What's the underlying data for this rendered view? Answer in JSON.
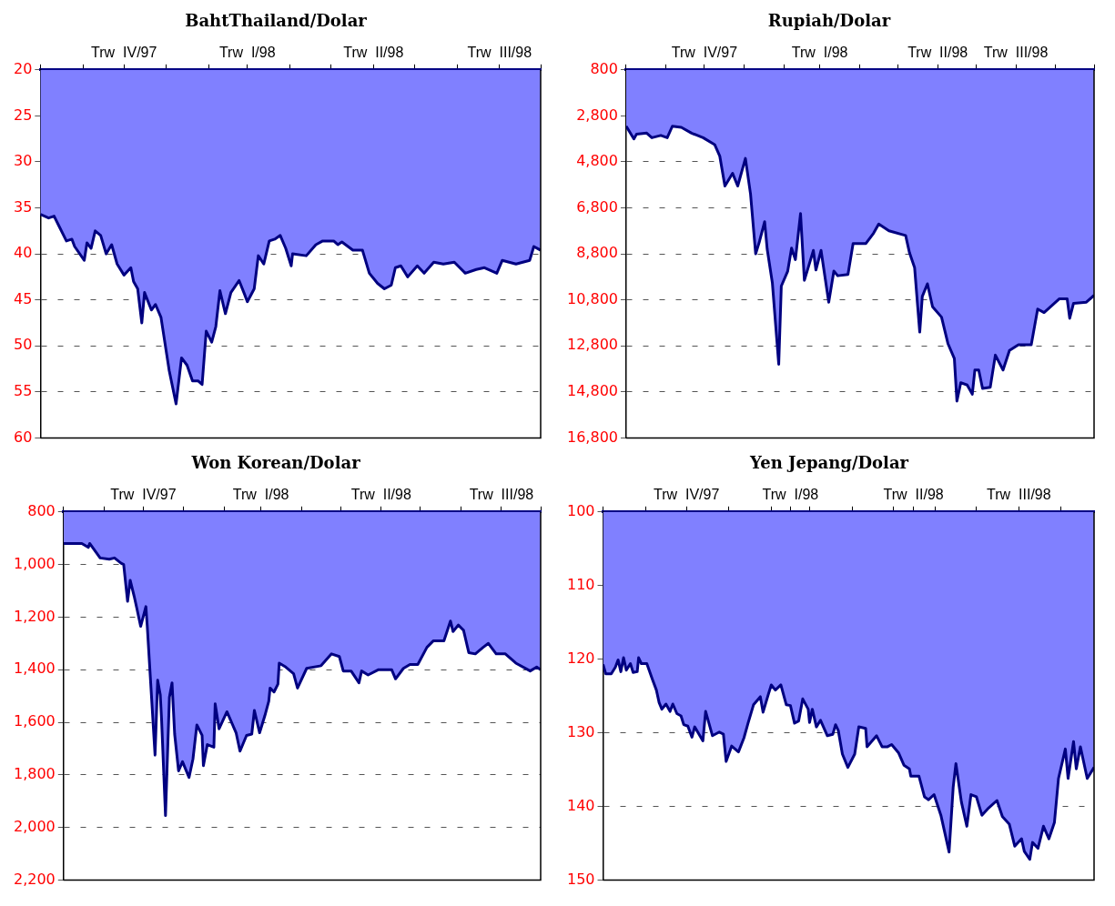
{
  "chart_data": [
    {
      "type": "area",
      "title": "BahtThailand/Dolar",
      "color": "#8080ff",
      "grid": "y",
      "xlim": [
        "1997-10-01",
        "1998-10-01"
      ],
      "ylim": [
        60,
        20
      ],
      "yticks": [
        20,
        25,
        30,
        35,
        40,
        45,
        50,
        55,
        60
      ],
      "xticks": [
        {
          "value": "1997-10-01",
          "label": null
        },
        {
          "value": "1997-11-01",
          "label": null
        },
        {
          "value": "1997-12-01",
          "label": "Trw  IV/97"
        },
        {
          "value": "1998-01-01",
          "label": null
        },
        {
          "value": "1998-02-01",
          "label": null
        },
        {
          "value": "1998-03-01",
          "label": "Trw  I/98"
        },
        {
          "value": "1998-04-01",
          "label": null
        },
        {
          "value": "1998-05-01",
          "label": null
        },
        {
          "value": "1998-06-01",
          "label": "Trw  II/98"
        },
        {
          "value": "1998-07-01",
          "label": null
        },
        {
          "value": "1998-08-01",
          "label": null
        },
        {
          "value": "1998-09-01",
          "label": "Trw  III/98"
        },
        {
          "value": "1998-10-01",
          "label": null
        }
      ],
      "x": [
        "1997-10-01",
        "1997-10-07",
        "1997-10-11",
        "1997-10-15",
        "1997-10-20",
        "1997-10-24",
        "1997-10-26",
        "1997-11-02",
        "1997-11-04",
        "1997-11-07",
        "1997-11-10",
        "1997-11-14",
        "1997-11-18",
        "1997-11-22",
        "1997-11-26",
        "1997-12-01",
        "1997-12-06",
        "1997-12-08",
        "1997-12-11",
        "1997-12-14",
        "1997-12-16",
        "1997-12-21",
        "1997-12-24",
        "1997-12-28",
        "1998-01-03",
        "1998-01-08",
        "1998-01-12",
        "1998-01-16",
        "1998-01-20",
        "1998-01-24",
        "1998-01-27",
        "1998-01-30",
        "1998-02-03",
        "1998-02-06",
        "1998-02-09",
        "1998-02-13",
        "1998-02-17",
        "1998-02-23",
        "1998-02-27",
        "1998-03-01",
        "1998-03-06",
        "1998-03-09",
        "1998-03-13",
        "1998-03-17",
        "1998-03-21",
        "1998-03-25",
        "1998-03-29",
        "1998-04-02",
        "1998-04-03",
        "1998-04-13",
        "1998-04-20",
        "1998-04-25",
        "1998-05-03",
        "1998-05-06",
        "1998-05-09",
        "1998-05-17",
        "1998-05-24",
        "1998-05-29",
        "1998-06-04",
        "1998-06-09",
        "1998-06-14",
        "1998-06-17",
        "1998-06-21",
        "1998-06-26",
        "1998-07-03",
        "1998-07-08",
        "1998-07-15",
        "1998-07-22",
        "1998-07-30",
        "1998-08-07",
        "1998-08-15",
        "1998-08-21",
        "1998-08-30",
        "1998-09-03",
        "1998-09-13",
        "1998-09-23",
        "1998-09-26",
        "1998-10-01"
      ],
      "values": [
        35.7,
        36.1,
        35.9,
        37.1,
        38.6,
        38.4,
        39.2,
        40.7,
        38.8,
        39.4,
        37.5,
        38,
        40,
        39,
        41.1,
        42.3,
        41.5,
        43,
        43.8,
        47.5,
        44.2,
        46.1,
        45.5,
        46.9,
        52.7,
        56.3,
        51.3,
        52.1,
        53.8,
        53.8,
        54.2,
        48.4,
        49.6,
        47.9,
        44,
        46.5,
        44.2,
        42.9,
        44.4,
        45.2,
        43.8,
        40.2,
        41.1,
        38.6,
        38.4,
        38,
        39.4,
        41.3,
        40,
        40.2,
        39,
        38.6,
        38.6,
        39,
        38.7,
        39.6,
        39.6,
        42.1,
        43.2,
        43.8,
        43.4,
        41.5,
        41.3,
        42.5,
        41.3,
        42.1,
        40.9,
        41.1,
        40.9,
        42.1,
        41.7,
        41.5,
        42.1,
        40.7,
        41.1,
        40.7,
        39.2,
        39.6
      ]
    },
    {
      "type": "area",
      "title": "Rupiah/Dolar",
      "color": "#8080ff",
      "grid": "y",
      "xlim": [
        "1997-10-01",
        "1998-10-01"
      ],
      "ylim": [
        16800,
        800
      ],
      "yticks": [
        800,
        {
          "value": 2800,
          "label": "2,800"
        },
        {
          "value": 4800,
          "label": "4,800"
        },
        {
          "value": 6800,
          "label": "6,800"
        },
        {
          "value": 8800,
          "label": "8,800"
        },
        {
          "value": 10800,
          "label": "10,800"
        },
        {
          "value": 12800,
          "label": "12,800"
        },
        {
          "value": 14800,
          "label": "14,800"
        },
        {
          "value": 16800,
          "label": "16,800"
        }
      ],
      "xticks": [
        {
          "value": "1997-10-01",
          "label": null
        },
        {
          "value": "1997-11-01",
          "label": null
        },
        {
          "value": "1997-12-01",
          "label": "Trw  IV/97"
        },
        {
          "value": "1998-01-01",
          "label": null
        },
        {
          "value": "1998-02-01",
          "label": null
        },
        {
          "value": "1998-03-01",
          "label": "Trw  I/98"
        },
        {
          "value": "1998-04-01",
          "label": null
        },
        {
          "value": "1998-05-01",
          "label": null
        },
        {
          "value": "1998-06-01",
          "label": "Trw  II/98"
        },
        {
          "value": "1998-07-01",
          "label": null
        },
        {
          "value": "1998-08-01",
          "label": "Trw  III/98"
        },
        {
          "value": "1998-09-01",
          "label": null
        },
        {
          "value": "1998-10-01",
          "label": null
        }
      ],
      "x": [
        "1997-10-01",
        "1997-10-07",
        "1997-10-09",
        "1997-10-17",
        "1997-10-21",
        "1997-10-28",
        "1997-11-02",
        "1997-11-06",
        "1997-11-13",
        "1997-11-21",
        "1997-11-30",
        "1997-12-09",
        "1997-12-13",
        "1997-12-17",
        "1997-12-23",
        "1997-12-27",
        "1998-01-02",
        "1998-01-06",
        "1998-01-10",
        "1998-01-13",
        "1998-01-17",
        "1998-01-19",
        "1998-01-23",
        "1998-01-28",
        "1998-01-30",
        "1998-02-04",
        "1998-02-07",
        "1998-02-10",
        "1998-02-14",
        "1998-02-17",
        "1998-02-24",
        "1998-02-26",
        "1998-03-02",
        "1998-03-08",
        "1998-03-12",
        "1998-03-15",
        "1998-03-23",
        "1998-03-27",
        "1998-04-06",
        "1998-04-12",
        "1998-04-16",
        "1998-04-24",
        "1998-05-07",
        "1998-05-10",
        "1998-05-14",
        "1998-05-18",
        "1998-05-20",
        "1998-05-24",
        "1998-05-28",
        "1998-06-04",
        "1998-06-09",
        "1998-06-14",
        "1998-06-16",
        "1998-06-19",
        "1998-06-24",
        "1998-06-28",
        "1998-06-30",
        "1998-07-03",
        "1998-07-06",
        "1998-07-12",
        "1998-07-16",
        "1998-07-22",
        "1998-07-27",
        "1998-08-03",
        "1998-08-13",
        "1998-08-18",
        "1998-08-23",
        "1998-09-04",
        "1998-09-10",
        "1998-09-12",
        "1998-09-15",
        "1998-09-25",
        "1998-10-01"
      ],
      "values": [
        3250,
        3800,
        3600,
        3550,
        3750,
        3650,
        3750,
        3250,
        3300,
        3550,
        3750,
        4050,
        4550,
        5850,
        5300,
        5850,
        4650,
        6200,
        8800,
        8250,
        7400,
        8600,
        10050,
        13600,
        10200,
        9550,
        8550,
        9050,
        7050,
        9950,
        8650,
        9500,
        8650,
        10900,
        9550,
        9750,
        9700,
        8350,
        8350,
        7900,
        7500,
        7800,
        8000,
        8750,
        9400,
        12200,
        10650,
        10100,
        11100,
        11550,
        12700,
        13350,
        15200,
        14400,
        14500,
        14900,
        13850,
        13850,
        14650,
        14600,
        13200,
        13850,
        13000,
        12750,
        12750,
        11200,
        11350,
        10750,
        10750,
        11600,
        10950,
        10900,
        10600
      ]
    },
    {
      "type": "area",
      "title": "Won Korean/Dolar",
      "color": "#8080ff",
      "grid": "y",
      "xlim": [
        "1997-10-01",
        "1998-10-01"
      ],
      "ylim": [
        2200,
        800
      ],
      "yticks": [
        800,
        {
          "value": 1000,
          "label": "1,000"
        },
        {
          "value": 1200,
          "label": "1,200"
        },
        {
          "value": 1400,
          "label": "1,400"
        },
        {
          "value": 1600,
          "label": "1,600"
        },
        {
          "value": 1800,
          "label": "1,800"
        },
        {
          "value": 2000,
          "label": "2,000"
        },
        {
          "value": 2200,
          "label": "2,200"
        }
      ],
      "xticks": [
        {
          "value": "1997-10-01",
          "label": null
        },
        {
          "value": "1997-11-01",
          "label": null
        },
        {
          "value": "1997-12-01",
          "label": "Trw  IV/97"
        },
        {
          "value": "1998-01-01",
          "label": null
        },
        {
          "value": "1998-02-01",
          "label": null
        },
        {
          "value": "1998-03-01",
          "label": "Trw  I/98"
        },
        {
          "value": "1998-04-01",
          "label": null
        },
        {
          "value": "1998-05-01",
          "label": null
        },
        {
          "value": "1998-06-01",
          "label": "Trw  II/98"
        },
        {
          "value": "1998-07-01",
          "label": null
        },
        {
          "value": "1998-08-01",
          "label": null
        },
        {
          "value": "1998-09-01",
          "label": "Trw  III/98"
        },
        {
          "value": "1998-10-01",
          "label": null
        }
      ],
      "x": [
        "1997-10-01",
        "1997-10-15",
        "1997-10-20",
        "1997-10-21",
        "1997-10-29",
        "1997-11-05",
        "1997-11-09",
        "1997-11-14",
        "1997-11-16",
        "1997-11-19",
        "1997-11-21",
        "1997-11-24",
        "1997-11-26",
        "1997-11-29",
        "1997-12-03",
        "1997-12-04",
        "1997-12-10",
        "1997-12-12",
        "1997-12-14",
        "1997-12-15",
        "1997-12-18",
        "1997-12-21",
        "1997-12-23",
        "1997-12-25",
        "1997-12-28",
        "1997-12-31",
        "1998-01-05",
        "1998-01-08",
        "1998-01-11",
        "1998-01-15",
        "1998-01-16",
        "1998-01-19",
        "1998-01-24",
        "1998-01-25",
        "1998-01-28",
        "1998-02-03",
        "1998-02-10",
        "1998-02-13",
        "1998-02-18",
        "1998-02-22",
        "1998-02-24",
        "1998-02-28",
        "1998-03-04",
        "1998-03-07",
        "1998-03-08",
        "1998-03-11",
        "1998-03-14",
        "1998-03-15",
        "1998-03-20",
        "1998-03-26",
        "1998-03-29",
        "1998-04-05",
        "1998-04-16",
        "1998-04-24",
        "1998-04-30",
        "1998-05-03",
        "1998-05-09",
        "1998-05-15",
        "1998-05-17",
        "1998-05-22",
        "1998-05-30",
        "1998-06-09",
        "1998-06-12",
        "1998-06-18",
        "1998-06-23",
        "1998-06-29",
        "1998-07-06",
        "1998-07-11",
        "1998-07-19",
        "1998-07-24",
        "1998-07-26",
        "1998-07-30",
        "1998-08-03",
        "1998-08-07",
        "1998-08-12",
        "1998-08-18",
        "1998-08-22",
        "1998-08-28",
        "1998-09-04",
        "1998-09-12",
        "1998-09-23",
        "1998-09-28",
        "1998-10-01"
      ],
      "values": [
        920,
        920,
        935,
        920,
        975,
        980,
        975,
        995,
        1000,
        1140,
        1060,
        1120,
        1165,
        1235,
        1160,
        1230,
        1725,
        1440,
        1495,
        1590,
        1955,
        1505,
        1450,
        1645,
        1785,
        1750,
        1810,
        1740,
        1610,
        1650,
        1765,
        1685,
        1695,
        1530,
        1625,
        1560,
        1640,
        1710,
        1650,
        1645,
        1555,
        1640,
        1575,
        1520,
        1470,
        1485,
        1455,
        1375,
        1390,
        1415,
        1470,
        1395,
        1385,
        1340,
        1350,
        1405,
        1405,
        1450,
        1405,
        1420,
        1400,
        1400,
        1435,
        1395,
        1380,
        1380,
        1315,
        1290,
        1290,
        1215,
        1255,
        1230,
        1250,
        1335,
        1340,
        1315,
        1300,
        1340,
        1340,
        1375,
        1405,
        1390,
        1400
      ]
    },
    {
      "type": "area",
      "title": "Yen Jepang/Dolar",
      "color": "#8080ff",
      "grid": "y",
      "xlim": [
        "1997-10-01",
        "1998-09-25"
      ],
      "ylim": [
        150,
        100
      ],
      "yticks": [
        100,
        110,
        120,
        130,
        140,
        150
      ],
      "xticks": [
        {
          "value": "1997-10-01",
          "label": null
        },
        {
          "value": "1997-11-01",
          "label": null
        },
        {
          "value": "1997-12-01",
          "label": "Trw  IV/97"
        },
        {
          "value": "1998-01-01",
          "label": null
        },
        {
          "value": "1998-02-01",
          "label": null
        },
        {
          "value": "1998-02-15",
          "label": "Trw  I/98"
        },
        {
          "value": "1998-03-01",
          "label": null
        },
        {
          "value": "1998-04-01",
          "label": null
        },
        {
          "value": "1998-05-01",
          "label": null
        },
        {
          "value": "1998-05-16",
          "label": "Trw  II/98"
        },
        {
          "value": "1998-06-01",
          "label": null
        },
        {
          "value": "1998-07-01",
          "label": null
        },
        {
          "value": "1998-08-01",
          "label": "Trw  III/98"
        },
        {
          "value": "1998-09-01",
          "label": null
        }
      ],
      "x": [
        "1997-10-01",
        "1997-10-03",
        "1997-10-07",
        "1997-10-10",
        "1997-10-12",
        "1997-10-14",
        "1997-10-16",
        "1997-10-18",
        "1997-10-21",
        "1997-10-23",
        "1997-10-26",
        "1997-10-27",
        "1997-10-29",
        "1997-11-02",
        "1997-11-06",
        "1997-11-09",
        "1997-11-11",
        "1997-11-13",
        "1997-11-16",
        "1997-11-19",
        "1997-11-21",
        "1997-11-24",
        "1997-11-27",
        "1997-11-29",
        "1997-12-02",
        "1997-12-05",
        "1997-12-07",
        "1997-12-13",
        "1997-12-15",
        "1997-12-20",
        "1997-12-25",
        "1997-12-28",
        "1997-12-30",
        "1998-01-03",
        "1998-01-08",
        "1998-01-12",
        "1998-01-15",
        "1998-01-19",
        "1998-01-24",
        "1998-01-26",
        "1998-01-30",
        "1998-02-01",
        "1998-02-04",
        "1998-02-08",
        "1998-02-12",
        "1998-02-15",
        "1998-02-18",
        "1998-02-21",
        "1998-02-24",
        "1998-02-28",
        "1998-03-01",
        "1998-03-03",
        "1998-03-06",
        "1998-03-09",
        "1998-03-14",
        "1998-03-18",
        "1998-03-20",
        "1998-03-22",
        "1998-03-25",
        "1998-03-29",
        "1998-04-03",
        "1998-04-06",
        "1998-04-11",
        "1998-04-12",
        "1998-04-19",
        "1998-04-23",
        "1998-04-27",
        "1998-04-30",
        "1998-05-05",
        "1998-05-09",
        "1998-05-13",
        "1998-05-14",
        "1998-05-20",
        "1998-05-24",
        "1998-05-27",
        "1998-05-31",
        "1998-06-05",
        "1998-06-11",
        "1998-06-14",
        "1998-06-16",
        "1998-06-20",
        "1998-06-24",
        "1998-06-27",
        "1998-07-01",
        "1998-07-05",
        "1998-07-10",
        "1998-07-16",
        "1998-07-20",
        "1998-07-25",
        "1998-07-29",
        "1998-08-03",
        "1998-08-05",
        "1998-08-09",
        "1998-08-11",
        "1998-08-15",
        "1998-08-19",
        "1998-08-23",
        "1998-08-27",
        "1998-08-30",
        "1998-09-04",
        "1998-09-06",
        "1998-09-10",
        "1998-09-12",
        "1998-09-15",
        "1998-09-20",
        "1998-09-25"
      ],
      "values": [
        120.7,
        122,
        122,
        121.1,
        120.1,
        121.7,
        119.8,
        121.5,
        120.6,
        121.8,
        121.7,
        119.8,
        120.6,
        120.6,
        122.7,
        124.2,
        125.9,
        126.8,
        126.1,
        127.1,
        126.1,
        127.4,
        127.7,
        128.9,
        129.1,
        130.6,
        129.2,
        131.1,
        127.1,
        130.4,
        129.9,
        130.2,
        133.9,
        131.8,
        132.6,
        130.7,
        128.7,
        126.2,
        125.1,
        127.2,
        124.7,
        123.5,
        124.2,
        123.5,
        126.2,
        126.3,
        128.7,
        128.4,
        125.4,
        126.8,
        128.6,
        126.8,
        129.2,
        128.3,
        130.4,
        130.2,
        128.9,
        129.7,
        132.9,
        134.7,
        132.9,
        129.2,
        129.4,
        131.9,
        130.4,
        131.9,
        131.9,
        131.6,
        132.7,
        134.4,
        134.9,
        135.9,
        135.9,
        138.7,
        139.1,
        138.4,
        141.2,
        146.2,
        137.4,
        134.2,
        139.4,
        142.7,
        138.4,
        138.7,
        141.2,
        140.2,
        139.2,
        141.4,
        142.4,
        145.4,
        144.4,
        146.1,
        147.2,
        144.9,
        145.7,
        142.7,
        144.4,
        142.2,
        136.2,
        132.2,
        136.2,
        131.2,
        134.9,
        131.9,
        136.2,
        134.7
      ]
    }
  ]
}
